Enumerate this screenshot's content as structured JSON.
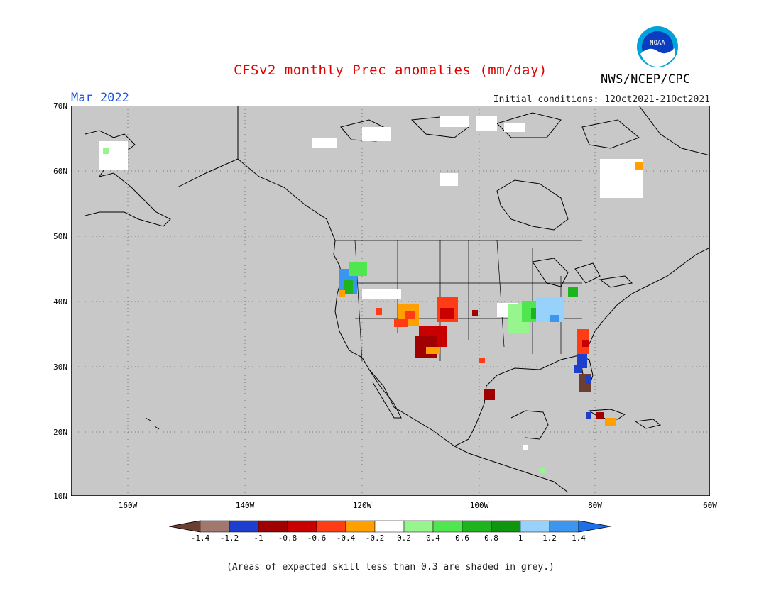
{
  "header": {
    "title": "CFSv2 monthly Prec anomalies (mm/day)",
    "month": "Mar 2022",
    "initial_conditions": "Initial conditions: 12Oct2021-21Oct2021",
    "agency": "NWS/NCEP/CPC",
    "logo_text": "NOAA"
  },
  "map": {
    "region": "North America",
    "lat_labels": [
      "70N",
      "60N",
      "50N",
      "40N",
      "30N",
      "20N",
      "10N"
    ],
    "lon_labels": [
      "160W",
      "140W",
      "120W",
      "100W",
      "80W",
      "60W"
    ],
    "background_color": "#c8c8c8",
    "gridlines": "dotted"
  },
  "colorbar": {
    "labels": [
      "-1.4",
      "-1.2",
      "-1",
      "-0.8",
      "-0.6",
      "-0.4",
      "-0.2",
      "0.2",
      "0.4",
      "0.6",
      "0.8",
      "1",
      "1.2",
      "1.4"
    ],
    "colors": [
      "#6b3f32",
      "#a0786e",
      "#1c3fcf",
      "#a00000",
      "#c80000",
      "#ff3c14",
      "#ffa000",
      "#ffffff",
      "#96f58c",
      "#50e650",
      "#1eb41e",
      "#0f960f",
      "#96d2fa",
      "#3c96f0",
      "#1e6ee6"
    ]
  },
  "footnote": "(Areas of expected skill less than 0.3 are shaded in grey.)"
}
